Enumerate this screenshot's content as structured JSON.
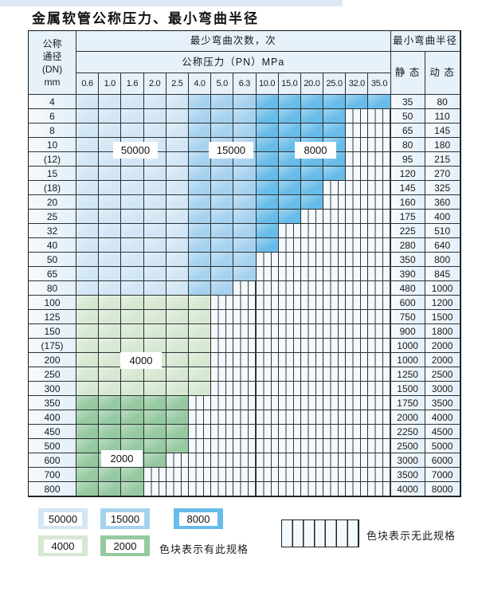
{
  "title": "金属软管公称压力、最小弯曲半径",
  "table": {
    "corner": [
      "公称",
      "通径",
      "(DN)",
      "mm"
    ],
    "bend_header": "最少弯曲次数，次",
    "pressure_header": "公称压力（PN）MPa",
    "radius_header": "最小弯曲半径",
    "static_label": "静 态",
    "dynamic_label": "动 态",
    "pn_columns": [
      "0.6",
      "1.0",
      "1.6",
      "2.0",
      "2.5",
      "4.0",
      "5.0",
      "6.3",
      "10.0",
      "15.0",
      "20.0",
      "25.0",
      "32.0",
      "35.0"
    ],
    "blue_cycle_zones": [
      {
        "cycles": "50000",
        "pn_from": "0.6",
        "pn_to": "2.5"
      },
      {
        "cycles": "15000",
        "pn_from": "4.0",
        "pn_to": "6.3"
      },
      {
        "cycles": "8000",
        "pn_from": "10.0",
        "pn_to": "35.0"
      }
    ],
    "rows": [
      {
        "dn": "4",
        "max_pn": "35.0",
        "group": "blue",
        "static": "35",
        "dynamic": "80"
      },
      {
        "dn": "6",
        "max_pn": "25.0",
        "group": "blue",
        "static": "50",
        "dynamic": "110"
      },
      {
        "dn": "8",
        "max_pn": "25.0",
        "group": "blue",
        "static": "65",
        "dynamic": "145"
      },
      {
        "dn": "10",
        "max_pn": "25.0",
        "group": "blue",
        "static": "80",
        "dynamic": "180"
      },
      {
        "dn": "(12)",
        "max_pn": "25.0",
        "group": "blue",
        "static": "95",
        "dynamic": "215"
      },
      {
        "dn": "15",
        "max_pn": "25.0",
        "group": "blue",
        "static": "120",
        "dynamic": "270"
      },
      {
        "dn": "(18)",
        "max_pn": "20.0",
        "group": "blue",
        "static": "145",
        "dynamic": "325"
      },
      {
        "dn": "20",
        "max_pn": "20.0",
        "group": "blue",
        "static": "160",
        "dynamic": "360"
      },
      {
        "dn": "25",
        "max_pn": "15.0",
        "group": "blue",
        "static": "175",
        "dynamic": "400"
      },
      {
        "dn": "32",
        "max_pn": "10.0",
        "group": "blue",
        "static": "225",
        "dynamic": "510"
      },
      {
        "dn": "40",
        "max_pn": "10.0",
        "group": "blue",
        "static": "280",
        "dynamic": "640"
      },
      {
        "dn": "50",
        "max_pn": "6.3",
        "group": "blue",
        "static": "350",
        "dynamic": "800"
      },
      {
        "dn": "65",
        "max_pn": "6.3",
        "group": "blue",
        "static": "390",
        "dynamic": "845"
      },
      {
        "dn": "80",
        "max_pn": "5.0",
        "group": "blue",
        "static": "480",
        "dynamic": "1000"
      },
      {
        "dn": "100",
        "max_pn": "4.0",
        "group": "green4000",
        "static": "600",
        "dynamic": "1200"
      },
      {
        "dn": "125",
        "max_pn": "4.0",
        "group": "green4000",
        "static": "750",
        "dynamic": "1500"
      },
      {
        "dn": "150",
        "max_pn": "4.0",
        "group": "green4000",
        "static": "900",
        "dynamic": "1800"
      },
      {
        "dn": "(175)",
        "max_pn": "4.0",
        "group": "green4000",
        "static": "1000",
        "dynamic": "2000"
      },
      {
        "dn": "200",
        "max_pn": "4.0",
        "group": "green4000",
        "static": "1000",
        "dynamic": "2000"
      },
      {
        "dn": "250",
        "max_pn": "4.0",
        "group": "green4000",
        "static": "1250",
        "dynamic": "2500"
      },
      {
        "dn": "300",
        "max_pn": "4.0",
        "group": "green4000",
        "static": "1500",
        "dynamic": "3000"
      },
      {
        "dn": "350",
        "max_pn": "2.5",
        "group": "green2000",
        "static": "1750",
        "dynamic": "3500"
      },
      {
        "dn": "400",
        "max_pn": "2.5",
        "group": "green2000",
        "static": "2000",
        "dynamic": "4000"
      },
      {
        "dn": "450",
        "max_pn": "2.5",
        "group": "green2000",
        "static": "2250",
        "dynamic": "4500"
      },
      {
        "dn": "500",
        "max_pn": "2.5",
        "group": "green2000",
        "static": "2500",
        "dynamic": "5000"
      },
      {
        "dn": "600",
        "max_pn": "2.0",
        "group": "green2000",
        "static": "3000",
        "dynamic": "6000"
      },
      {
        "dn": "700",
        "max_pn": "1.6",
        "group": "green2000",
        "static": "3500",
        "dynamic": "7000"
      },
      {
        "dn": "800",
        "max_pn": "1.6",
        "group": "green2000",
        "static": "4000",
        "dynamic": "8000"
      }
    ]
  },
  "overlay_labels": [
    {
      "text": "50000"
    },
    {
      "text": "15000"
    },
    {
      "text": "8000"
    },
    {
      "text": "4000"
    },
    {
      "text": "2000"
    }
  ],
  "legend": {
    "items": [
      {
        "label": "50000",
        "color_key": "c50000"
      },
      {
        "label": "15000",
        "color_key": "c15000"
      },
      {
        "label": "8000",
        "color_key": "c8000"
      },
      {
        "label": "4000",
        "color_key": "c4000"
      },
      {
        "label": "2000",
        "color_key": "c2000"
      }
    ],
    "has_spec_text": "色块表示有此规格",
    "no_spec_text": "色块表示无此规格"
  },
  "colors": {
    "c50000": "#d2e6f5",
    "c15000": "#a6d2ef",
    "c8000": "#68bce9",
    "c4000": "#d7e8d2",
    "c2000": "#95c9a0",
    "no_spec_bg": "#f3f9fd",
    "stripe_line": "#363b3f",
    "header_bg": "#e7f1fa",
    "label_bg_light": "#f6fafd",
    "label_bg": "#e4eff8"
  }
}
